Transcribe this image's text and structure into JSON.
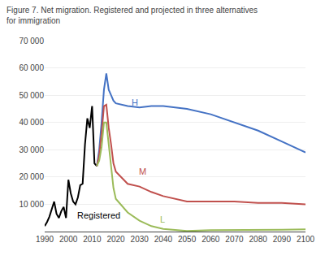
{
  "chart_data": {
    "type": "line",
    "title": "Figure 7. Net migration. Registered and projected in three alternatives\nfor immigration",
    "xlim": [
      1990,
      2100
    ],
    "xticks": [
      1990,
      2000,
      2010,
      2020,
      2030,
      2040,
      2050,
      2060,
      2070,
      2080,
      2090,
      2100
    ],
    "ylim": [
      0,
      70000
    ],
    "yticks": [
      {
        "value": 10000,
        "label": "10 000"
      },
      {
        "value": 20000,
        "label": "20 000"
      },
      {
        "value": 30000,
        "label": "30 000"
      },
      {
        "value": 40000,
        "label": "40 000"
      },
      {
        "value": 50000,
        "label": "50 000"
      },
      {
        "value": 60000,
        "label": "60 000"
      },
      {
        "value": 70000,
        "label": "70 000"
      }
    ],
    "grid": true,
    "series": [
      {
        "name": "Registered",
        "color": "#000000",
        "x": [
          1990,
          1991,
          1992,
          1993,
          1994,
          1995,
          1996,
          1997,
          1998,
          1999,
          2000,
          2001,
          2002,
          2003,
          2004,
          2005,
          2006,
          2007,
          2008,
          2009,
          2010,
          2011,
          2012
        ],
        "values": [
          2000,
          3500,
          5500,
          8000,
          11000,
          6500,
          5000,
          7500,
          9000,
          5000,
          19000,
          14000,
          11000,
          10000,
          12500,
          17000,
          17500,
          32000,
          41500,
          38000,
          46000,
          25000,
          24000
        ]
      },
      {
        "name": "H",
        "color": "#4472C4",
        "x": [
          2012,
          2013,
          2014,
          2015,
          2016,
          2017,
          2018,
          2019,
          2020,
          2025,
          2030,
          2035,
          2040,
          2045,
          2050,
          2060,
          2070,
          2080,
          2090,
          2100
        ],
        "values": [
          24000,
          30000,
          40000,
          52000,
          58000,
          52000,
          50000,
          48000,
          47000,
          46000,
          45500,
          46000,
          46000,
          45500,
          45000,
          43000,
          40000,
          37000,
          33000,
          29000
        ]
      },
      {
        "name": "M",
        "color": "#C0504D",
        "x": [
          2012,
          2013,
          2014,
          2015,
          2016,
          2017,
          2018,
          2019,
          2020,
          2025,
          2030,
          2035,
          2040,
          2045,
          2050,
          2060,
          2070,
          2080,
          2090,
          2100
        ],
        "values": [
          24000,
          28000,
          36000,
          46000,
          46500,
          38000,
          32000,
          25000,
          22000,
          17500,
          16500,
          14500,
          13000,
          12000,
          11000,
          11000,
          11000,
          10500,
          10500,
          10000
        ]
      },
      {
        "name": "L",
        "color": "#9BBB59",
        "x": [
          2012,
          2013,
          2014,
          2015,
          2016,
          2017,
          2018,
          2019,
          2020,
          2025,
          2030,
          2035,
          2040,
          2045,
          2050,
          2060,
          2070,
          2080,
          2090,
          2100
        ],
        "values": [
          24000,
          26000,
          31000,
          40000,
          40000,
          32000,
          24000,
          16000,
          12000,
          7000,
          4000,
          2000,
          1000,
          500,
          200,
          500,
          500,
          700,
          700,
          800
        ]
      }
    ],
    "annotations": [
      {
        "text": "H",
        "x": 2026,
        "y": 47500,
        "color": "#4472C4"
      },
      {
        "text": "M",
        "x": 2029,
        "y": 22000,
        "color": "#C0504D"
      },
      {
        "text": "L",
        "x": 2038,
        "y": 4500,
        "color": "#9BBB59"
      },
      {
        "text": "Registered",
        "x": 2003,
        "y": 6000,
        "color": "#000000"
      }
    ]
  }
}
